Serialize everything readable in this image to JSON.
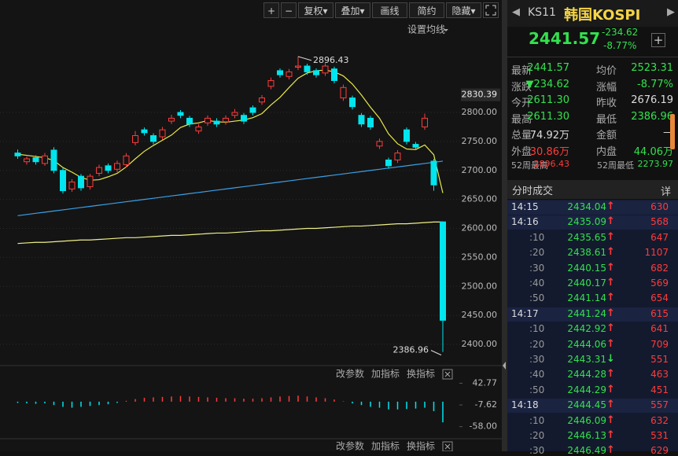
{
  "toolbar": {
    "buttons": [
      "+",
      "−",
      "复权▾",
      "叠加▾",
      "画线",
      "简约",
      "隐藏▾"
    ]
  },
  "chart_data": [
    {
      "type": "candlestick",
      "ma_setting": "设置均线",
      "open": [
        2730,
        2715,
        2722,
        2712,
        2735,
        2700,
        2668,
        2690,
        2672,
        2695,
        2708,
        2702,
        2710,
        2748,
        2770,
        2760,
        2758,
        2785,
        2800,
        2790,
        2768,
        2782,
        2785,
        2784,
        2795,
        2795,
        2808,
        2818,
        2845,
        2872,
        2862,
        2878,
        2880,
        2872,
        2868,
        2875,
        2825,
        2825,
        2795,
        2790,
        2742,
        2718,
        2718,
        2770,
        2745,
        2775,
        2716,
        2611.3
      ],
      "high": [
        2736,
        2724,
        2726,
        2730,
        2740,
        2704,
        2685,
        2694,
        2694,
        2710,
        2712,
        2717,
        2730,
        2768,
        2774,
        2764,
        2775,
        2796,
        2804,
        2794,
        2780,
        2795,
        2790,
        2795,
        2806,
        2799,
        2812,
        2830,
        2860,
        2876,
        2875,
        2896.43,
        2884,
        2876,
        2885,
        2879,
        2848,
        2829,
        2799,
        2794,
        2755,
        2722,
        2735,
        2774,
        2749,
        2798,
        2720,
        2611.3
      ],
      "low": [
        2720,
        2710,
        2710,
        2708,
        2695,
        2660,
        2663,
        2665,
        2667,
        2690,
        2695,
        2697,
        2705,
        2743,
        2760,
        2745,
        2753,
        2780,
        2790,
        2775,
        2763,
        2777,
        2775,
        2779,
        2790,
        2780,
        2795,
        2813,
        2840,
        2860,
        2857,
        2873,
        2865,
        2860,
        2863,
        2850,
        2820,
        2805,
        2775,
        2770,
        2737,
        2703,
        2713,
        2745,
        2735,
        2770,
        2665,
        2386.96
      ],
      "close": [
        2725,
        2720,
        2715,
        2725,
        2700,
        2665,
        2680,
        2670,
        2690,
        2705,
        2700,
        2712,
        2725,
        2760,
        2765,
        2750,
        2770,
        2790,
        2795,
        2780,
        2775,
        2790,
        2780,
        2790,
        2800,
        2785,
        2800,
        2825,
        2855,
        2865,
        2870,
        2880,
        2870,
        2865,
        2880,
        2855,
        2843,
        2810,
        2780,
        2775,
        2750,
        2708,
        2730,
        2750,
        2740,
        2790,
        2675,
        2441.57
      ],
      "up_color": "#ff3b3b",
      "down_color": "#00e5ee",
      "moving_averages": [
        {
          "color": "#e8e84a",
          "values": [
            2728,
            2726,
            2724,
            2722,
            2717,
            2705,
            2697,
            2688,
            2683,
            2684,
            2689,
            2695,
            2706,
            2720,
            2733,
            2743,
            2752,
            2761,
            2774,
            2780,
            2782,
            2786,
            2784,
            2783,
            2785,
            2787,
            2791,
            2798,
            2813,
            2826,
            2843,
            2859,
            2868,
            2872,
            2873,
            2870,
            2863,
            2849,
            2830,
            2809,
            2790,
            2763,
            2746,
            2737,
            2736,
            2744,
            2727,
            2661
          ]
        },
        {
          "color": "#3aa0e8",
          "values": [
            2622,
            2624,
            2626,
            2628,
            2630,
            2632,
            2634,
            2636,
            2638,
            2640,
            2642,
            2644,
            2646,
            2648,
            2650,
            2652,
            2654,
            2656,
            2658,
            2660,
            2662,
            2664,
            2666,
            2668,
            2670,
            2672,
            2674,
            2676,
            2678,
            2680,
            2682,
            2684,
            2686,
            2688,
            2690,
            2692,
            2694,
            2696,
            2698,
            2700,
            2702,
            2704,
            2706,
            2708,
            2710,
            2712,
            2714,
            2716
          ]
        },
        {
          "color": "#eeee88",
          "values": [
            2574,
            2575,
            2576,
            2576,
            2577,
            2578,
            2579,
            2580,
            2580,
            2581,
            2582,
            2583,
            2584,
            2584,
            2585,
            2586,
            2587,
            2588,
            2588,
            2589,
            2590,
            2591,
            2592,
            2592,
            2593,
            2594,
            2595,
            2596,
            2596,
            2597,
            2598,
            2599,
            2600,
            2600,
            2601,
            2602,
            2603,
            2604,
            2604,
            2605,
            2606,
            2607,
            2608,
            2608,
            2609,
            2610,
            2611,
            2611
          ]
        }
      ],
      "cursor_price": 2830.39,
      "ylim": [
        2370.2,
        2923.4
      ],
      "yticks": [
        {
          "value": 2400,
          "label": "2400.00"
        },
        {
          "value": 2450,
          "label": "2450.00"
        },
        {
          "value": 2500,
          "label": "2500.00"
        },
        {
          "value": 2550,
          "label": "2550.00"
        },
        {
          "value": 2600,
          "label": "2600.00"
        },
        {
          "value": 2650,
          "label": "2650.00"
        },
        {
          "value": 2700,
          "label": "2700.00"
        },
        {
          "value": 2750,
          "label": "2750.00"
        },
        {
          "value": 2800,
          "label": "2800.00"
        }
      ],
      "grid": true
    },
    {
      "type": "bar",
      "tools": [
        "改参数",
        "加指标",
        "换指标"
      ],
      "values": [
        -3,
        -4,
        -5,
        -4,
        -8,
        -12,
        -14,
        -12,
        -10,
        -8,
        -6,
        -3,
        2,
        6,
        9,
        10,
        11,
        12,
        13,
        12,
        11,
        10,
        9,
        8,
        8,
        7,
        7,
        8,
        10,
        12,
        13,
        14,
        12,
        10,
        8,
        5,
        1,
        -4,
        -8,
        -12,
        -14,
        -18,
        -18,
        -17,
        -16,
        -14,
        -22,
        -48
      ],
      "up_color": "#ff3b3b",
      "down_color": "#00e5ee",
      "ylim": [
        -80.5,
        52.7
      ],
      "yticks": [
        42.77,
        -7.62,
        {
          "value": -58,
          "label": "-58.00"
        }
      ]
    }
  ],
  "quote": {
    "code": "KS11",
    "name": "韩国KOSPI",
    "price": "2441.57",
    "change": "-234.62",
    "change_pct": "-8.77%"
  },
  "stats": [
    [
      "最新",
      "2441.57",
      "均价",
      "2523.31"
    ],
    [
      "涨跌",
      "▼234.62",
      "涨幅",
      "-8.77%"
    ],
    [
      "今开",
      "2611.30",
      "昨收",
      "2676.19"
    ],
    [
      "最高",
      "2611.30",
      "最低",
      "2386.96"
    ],
    [
      "总量",
      "74.92万",
      "金额",
      "—"
    ],
    [
      "外盘",
      "30.86万",
      "内盘",
      "44.06万"
    ],
    [
      "52周最高",
      "2896.43",
      "52周最低",
      "2273.97"
    ]
  ],
  "ticks_table": {
    "title": "分时成交",
    "detail": "详",
    "rows": [
      [
        "14:15",
        "2434.04",
        "↑",
        "630"
      ],
      [
        "14:16",
        "2435.09",
        "↑",
        "568"
      ],
      [
        ":10",
        "2435.65",
        "↑",
        "647"
      ],
      [
        ":20",
        "2438.61",
        "↑",
        "1107"
      ],
      [
        ":30",
        "2440.15",
        "↑",
        "682"
      ],
      [
        ":40",
        "2440.17",
        "↑",
        "569"
      ],
      [
        ":50",
        "2441.14",
        "↑",
        "654"
      ],
      [
        "14:17",
        "2441.24",
        "↑",
        "615"
      ],
      [
        ":10",
        "2442.92",
        "↑",
        "641"
      ],
      [
        ":20",
        "2444.06",
        "↑",
        "709"
      ],
      [
        ":30",
        "2443.31",
        "↓",
        "551"
      ],
      [
        ":40",
        "2444.28",
        "↑",
        "463"
      ],
      [
        ":50",
        "2444.29",
        "↑",
        "451"
      ],
      [
        "14:18",
        "2444.45",
        "↑",
        "557"
      ],
      [
        ":10",
        "2446.09",
        "↑",
        "632"
      ],
      [
        ":20",
        "2446.13",
        "↑",
        "531"
      ],
      [
        ":30",
        "2446.49",
        "↑",
        "629"
      ]
    ]
  }
}
